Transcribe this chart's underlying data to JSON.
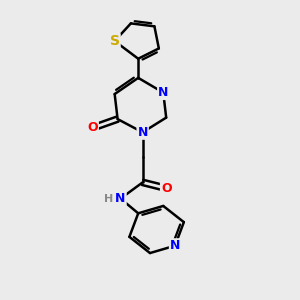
{
  "bg_color": "#ebebeb",
  "bond_color": "#000000",
  "bond_width": 1.8,
  "atom_colors": {
    "N": "#0000ff",
    "O": "#ff0000",
    "S": "#ccaa00",
    "H": "#888888",
    "C": "#000000"
  },
  "font_size": 9,
  "fig_size": [
    3.0,
    3.0
  ],
  "dpi": 100
}
